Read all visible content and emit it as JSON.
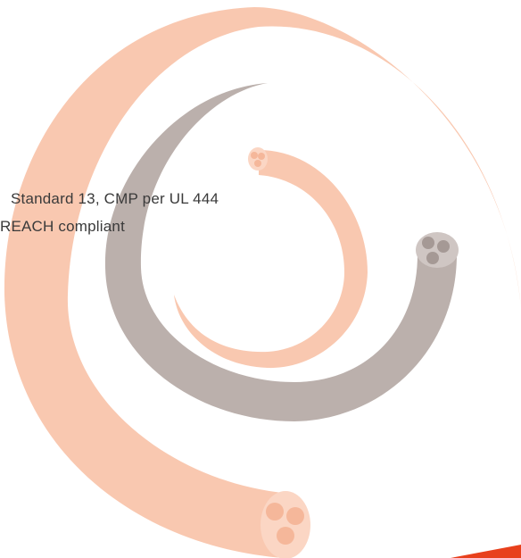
{
  "text": {
    "lines": [
      "Standard 13, CMP per UL 444",
      "REACH compliant"
    ]
  }
}
